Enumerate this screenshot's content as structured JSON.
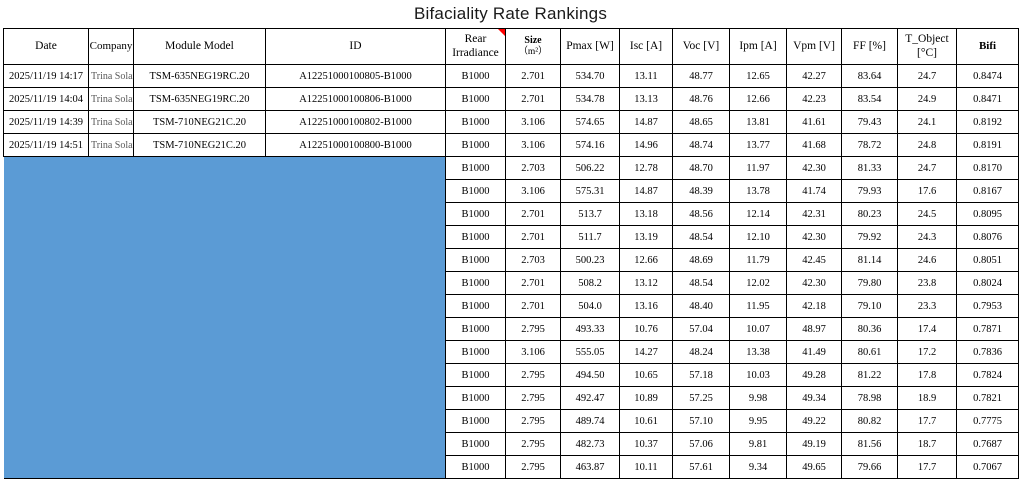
{
  "title": "Bifaciality Rate Rankings",
  "mask_color": "#5B9BD5",
  "comment_marker_color": "#FF0000",
  "table": {
    "headers": [
      {
        "line1": "Date"
      },
      {
        "line1": "Company"
      },
      {
        "line1": "Module Model"
      },
      {
        "line1": "ID"
      },
      {
        "line1": "Rear",
        "line2": "Irradiance"
      },
      {
        "line1": "Size",
        "line2": "（m²）"
      },
      {
        "line1": "Pmax [W]"
      },
      {
        "line1": "Isc [A]"
      },
      {
        "line1": "Voc [V]"
      },
      {
        "line1": "Ipm [A]"
      },
      {
        "line1": "Vpm [V]"
      },
      {
        "line1": "FF [%]"
      },
      {
        "line1": "T_Object",
        "line2": "[°C]"
      },
      {
        "line1": "Bifi"
      }
    ],
    "visible_rows": [
      {
        "date": "2025/11/19 14:17",
        "company": "Trina Solar",
        "module_model": "TSM-635NEG19RC.20",
        "id": "A12251000100805-B1000",
        "values": [
          "B1000",
          "2.701",
          "534.70",
          "13.11",
          "48.77",
          "12.65",
          "42.27",
          "83.64",
          "24.7",
          "0.8474"
        ]
      },
      {
        "date": "2025/11/19 14:04",
        "company": "Trina Solar",
        "module_model": "TSM-635NEG19RC.20",
        "id": "A12251000100806-B1000",
        "values": [
          "B1000",
          "2.701",
          "534.78",
          "13.13",
          "48.76",
          "12.66",
          "42.23",
          "83.54",
          "24.9",
          "0.8471"
        ]
      },
      {
        "date": "2025/11/19 14:39",
        "company": "Trina Solar",
        "module_model": "TSM-710NEG21C.20",
        "id": "A12251000100802-B1000",
        "values": [
          "B1000",
          "3.106",
          "574.65",
          "14.87",
          "48.65",
          "13.81",
          "41.61",
          "79.43",
          "24.1",
          "0.8192"
        ]
      },
      {
        "date": "2025/11/19 14:51",
        "company": "Trina Solar",
        "module_model": "TSM-710NEG21C.20",
        "id": "A12251000100800-B1000",
        "values": [
          "B1000",
          "3.106",
          "574.16",
          "14.96",
          "48.74",
          "13.77",
          "41.68",
          "78.72",
          "24.8",
          "0.8191"
        ]
      }
    ],
    "masked_rows": [
      [
        "B1000",
        "2.703",
        "506.22",
        "12.78",
        "48.70",
        "11.97",
        "42.30",
        "81.33",
        "24.7",
        "0.8170"
      ],
      [
        "B1000",
        "3.106",
        "575.31",
        "14.87",
        "48.39",
        "13.78",
        "41.74",
        "79.93",
        "17.6",
        "0.8167"
      ],
      [
        "B1000",
        "2.701",
        "513.7",
        "13.18",
        "48.56",
        "12.14",
        "42.31",
        "80.23",
        "24.5",
        "0.8095"
      ],
      [
        "B1000",
        "2.701",
        "511.7",
        "13.19",
        "48.54",
        "12.10",
        "42.30",
        "79.92",
        "24.3",
        "0.8076"
      ],
      [
        "B1000",
        "2.703",
        "500.23",
        "12.66",
        "48.69",
        "11.79",
        "42.45",
        "81.14",
        "24.6",
        "0.8051"
      ],
      [
        "B1000",
        "2.701",
        "508.2",
        "13.12",
        "48.54",
        "12.02",
        "42.30",
        "79.80",
        "23.8",
        "0.8024"
      ],
      [
        "B1000",
        "2.701",
        "504.0",
        "13.16",
        "48.40",
        "11.95",
        "42.18",
        "79.10",
        "23.3",
        "0.7953"
      ],
      [
        "B1000",
        "2.795",
        "493.33",
        "10.76",
        "57.04",
        "10.07",
        "48.97",
        "80.36",
        "17.4",
        "0.7871"
      ],
      [
        "B1000",
        "3.106",
        "555.05",
        "14.27",
        "48.24",
        "13.38",
        "41.49",
        "80.61",
        "17.2",
        "0.7836"
      ],
      [
        "B1000",
        "2.795",
        "494.50",
        "10.65",
        "57.18",
        "10.03",
        "49.28",
        "81.22",
        "17.8",
        "0.7824"
      ],
      [
        "B1000",
        "2.795",
        "492.47",
        "10.89",
        "57.25",
        "9.98",
        "49.34",
        "78.98",
        "18.9",
        "0.7821"
      ],
      [
        "B1000",
        "2.795",
        "489.74",
        "10.61",
        "57.10",
        "9.95",
        "49.22",
        "80.82",
        "17.7",
        "0.7775"
      ],
      [
        "B1000",
        "2.795",
        "482.73",
        "10.37",
        "57.06",
        "9.81",
        "49.19",
        "81.56",
        "18.7",
        "0.7687"
      ],
      [
        "B1000",
        "2.795",
        "463.87",
        "10.11",
        "57.61",
        "9.34",
        "49.65",
        "79.66",
        "17.7",
        "0.7067"
      ]
    ]
  }
}
